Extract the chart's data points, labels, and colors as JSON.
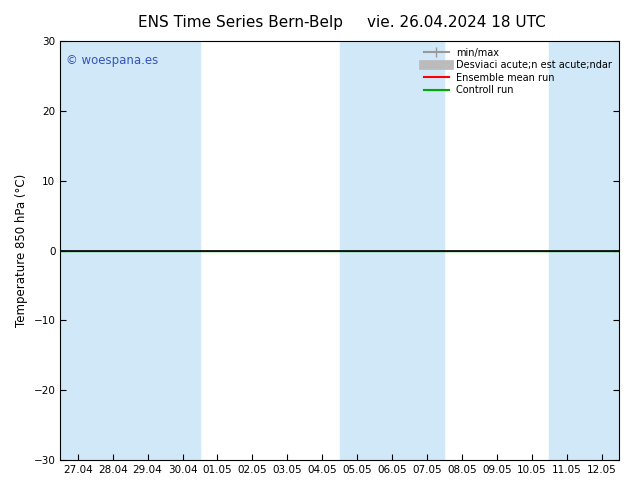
{
  "title_left": "ENS Time Series Bern-Belp",
  "title_right": "vie. 26.04.2024 18 UTC",
  "ylabel": "Temperature 850 hPa (°C)",
  "ylim": [
    -30,
    30
  ],
  "yticks": [
    -30,
    -20,
    -10,
    0,
    10,
    20,
    30
  ],
  "x_labels": [
    "27.04",
    "28.04",
    "29.04",
    "30.04",
    "01.05",
    "02.05",
    "03.05",
    "04.05",
    "05.05",
    "06.05",
    "07.05",
    "08.05",
    "09.05",
    "10.05",
    "11.05",
    "12.05"
  ],
  "bg_color": "#ffffff",
  "plot_bg_color": "#ffffff",
  "band_color": "#d0e8f8",
  "watermark": "© woespana.es",
  "watermark_color": "#3355bb",
  "legend_items": [
    "min/max",
    "Desviaci acute;n est acute;ndar",
    "Ensemble mean run",
    "Controll run"
  ],
  "legend_line_colors": [
    "#999999",
    "#bbbbbb",
    "#ff0000",
    "#00aa00"
  ],
  "title_fontsize": 11,
  "axis_fontsize": 8.5,
  "tick_fontsize": 7.5,
  "shaded_band_ranges": [
    [
      0,
      1
    ],
    [
      2,
      3
    ],
    [
      8,
      10
    ],
    [
      14,
      15
    ]
  ],
  "green_line_y": 0,
  "black_line_y": 0
}
